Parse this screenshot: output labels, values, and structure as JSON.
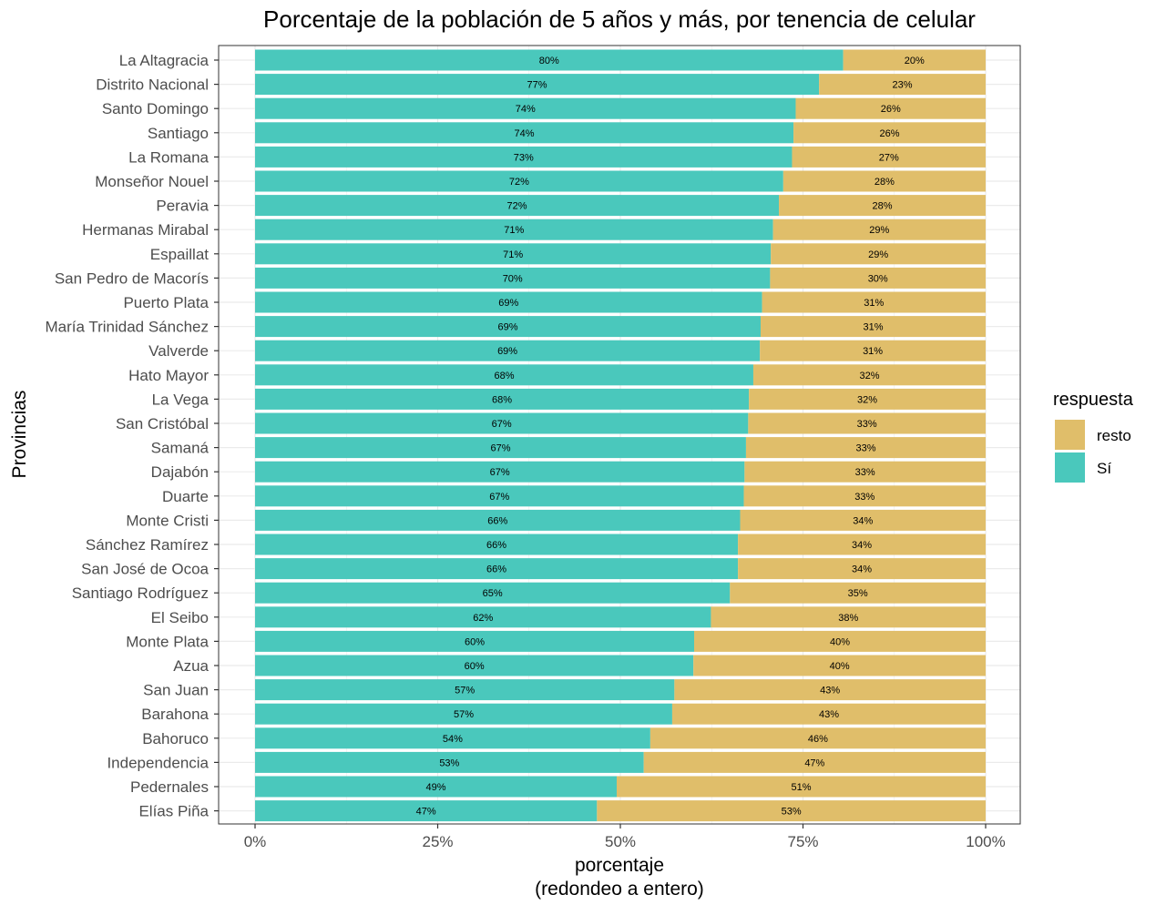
{
  "chart_data": {
    "type": "bar",
    "orientation": "horizontal",
    "stacked": true,
    "title": "Porcentaje de la población de 5 años y más, por tenencia de celular",
    "xlabel": "porcentaje",
    "xlabel_sub": "(redondeo a entero)",
    "ylabel": "Provincias",
    "xlim": [
      0,
      1
    ],
    "x_ticks": [
      "0%",
      "25%",
      "50%",
      "75%",
      "100%"
    ],
    "grid": true,
    "legend": {
      "title": "respuesta",
      "placement": "right",
      "items": [
        {
          "label": "resto",
          "color": "#E0BE6A"
        },
        {
          "label": "Sí",
          "color": "#4AC8BC"
        }
      ]
    },
    "categories": [
      "La Altagracia",
      "Distrito Nacional",
      "Santo Domingo",
      "Santiago",
      "La Romana",
      "Monseñor Nouel",
      "Peravia",
      "Hermanas Mirabal",
      "Espaillat",
      "San Pedro de Macorís",
      "Puerto Plata",
      "María Trinidad Sánchez",
      "Valverde",
      "Hato Mayor",
      "La Vega",
      "San Cristóbal",
      "Samaná",
      "Dajabón",
      "Duarte",
      "Monte Cristi",
      "Sánchez Ramírez",
      "San José de Ocoa",
      "Santiago Rodríguez",
      "El Seibo",
      "Monte Plata",
      "Azua",
      "San Juan",
      "Barahona",
      "Bahoruco",
      "Independencia",
      "Pedernales",
      "Elías Piña"
    ],
    "series": [
      {
        "name": "Sí",
        "color": "#4AC8BC",
        "values": [
          0.805,
          0.772,
          0.74,
          0.737,
          0.735,
          0.723,
          0.717,
          0.709,
          0.706,
          0.705,
          0.694,
          0.692,
          0.691,
          0.682,
          0.676,
          0.675,
          0.672,
          0.67,
          0.669,
          0.664,
          0.661,
          0.661,
          0.65,
          0.624,
          0.601,
          0.6,
          0.574,
          0.571,
          0.541,
          0.532,
          0.495,
          0.468
        ],
        "labels": [
          "80%",
          "77%",
          "74%",
          "74%",
          "73%",
          "72%",
          "72%",
          "71%",
          "71%",
          "70%",
          "69%",
          "69%",
          "69%",
          "68%",
          "68%",
          "67%",
          "67%",
          "67%",
          "67%",
          "66%",
          "66%",
          "66%",
          "65%",
          "62%",
          "60%",
          "60%",
          "57%",
          "57%",
          "54%",
          "53%",
          "49%",
          "47%"
        ]
      },
      {
        "name": "resto",
        "color": "#E0BE6A",
        "values": [
          0.195,
          0.228,
          0.26,
          0.263,
          0.265,
          0.277,
          0.283,
          0.291,
          0.294,
          0.295,
          0.306,
          0.308,
          0.309,
          0.318,
          0.324,
          0.325,
          0.328,
          0.33,
          0.331,
          0.336,
          0.339,
          0.339,
          0.35,
          0.376,
          0.399,
          0.4,
          0.426,
          0.429,
          0.459,
          0.468,
          0.505,
          0.532
        ],
        "labels": [
          "20%",
          "23%",
          "26%",
          "26%",
          "27%",
          "28%",
          "28%",
          "29%",
          "29%",
          "30%",
          "31%",
          "31%",
          "31%",
          "32%",
          "32%",
          "33%",
          "33%",
          "33%",
          "33%",
          "34%",
          "34%",
          "34%",
          "35%",
          "38%",
          "40%",
          "40%",
          "43%",
          "43%",
          "46%",
          "47%",
          "51%",
          "53%"
        ]
      }
    ]
  }
}
